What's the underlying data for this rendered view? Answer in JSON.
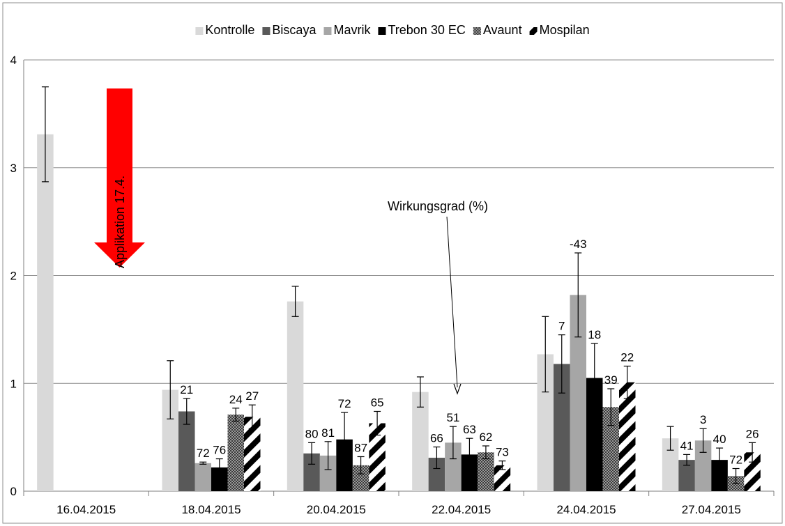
{
  "chart_data": {
    "type": "bar",
    "categories": [
      "16.04.2015",
      "18.04.2015",
      "20.04.2015",
      "22.04.2015",
      "24.04.2015",
      "27.04.2015"
    ],
    "ylim": [
      0,
      4
    ],
    "yticks": [
      0,
      1,
      2,
      3,
      4
    ],
    "grid": true,
    "legend_position": "top",
    "series": [
      {
        "name": "Kontrolle",
        "color": "#d9d9d9",
        "pattern": "solid",
        "values": [
          3.31,
          0.94,
          1.76,
          0.92,
          1.27,
          0.49
        ],
        "errors": [
          0.44,
          0.27,
          0.14,
          0.14,
          0.35,
          0.11
        ],
        "labels": [
          "",
          "",
          "",
          "",
          "",
          ""
        ]
      },
      {
        "name": "Biscaya",
        "color": "#595959",
        "pattern": "solid",
        "values": [
          null,
          0.74,
          0.35,
          0.31,
          1.18,
          0.29
        ],
        "errors": [
          null,
          0.12,
          0.1,
          0.1,
          0.27,
          0.05
        ],
        "labels": [
          "",
          "21",
          "80",
          "66",
          "7",
          "41"
        ]
      },
      {
        "name": "Mavrik",
        "color": "#a6a6a6",
        "pattern": "solid",
        "values": [
          null,
          0.26,
          0.33,
          0.45,
          1.82,
          0.47
        ],
        "errors": [
          null,
          0.01,
          0.13,
          0.15,
          0.39,
          0.11
        ],
        "labels": [
          "",
          "72",
          "81",
          "51",
          "-43",
          "3"
        ]
      },
      {
        "name": "Trebon 30 EC",
        "color": "#000000",
        "pattern": "solid",
        "values": [
          null,
          0.22,
          0.48,
          0.34,
          1.05,
          0.29
        ],
        "errors": [
          null,
          0.08,
          0.25,
          0.15,
          0.32,
          0.11
        ],
        "labels": [
          "",
          "76",
          "72",
          "63",
          "18",
          "40"
        ]
      },
      {
        "name": "Avaunt",
        "color": "#7f7f7f",
        "pattern": "checker",
        "values": [
          null,
          0.71,
          0.24,
          0.36,
          0.78,
          0.14
        ],
        "errors": [
          null,
          0.06,
          0.08,
          0.06,
          0.17,
          0.07
        ],
        "labels": [
          "",
          "24",
          "87",
          "62",
          "39",
          "72"
        ]
      },
      {
        "name": "Mospilan",
        "color": "#000000",
        "pattern": "diagonal",
        "values": [
          null,
          0.69,
          0.63,
          0.24,
          1.01,
          0.36
        ],
        "errors": [
          null,
          0.11,
          0.11,
          0.04,
          0.15,
          0.09
        ],
        "labels": [
          "",
          "27",
          "65",
          "73",
          "22",
          "26"
        ]
      }
    ],
    "annotations": {
      "applikation_arrow": "Applikation 17.4.",
      "applikation_color": "#ff0000",
      "wirkungsgrad": "Wirkungsgrad (%)"
    }
  }
}
